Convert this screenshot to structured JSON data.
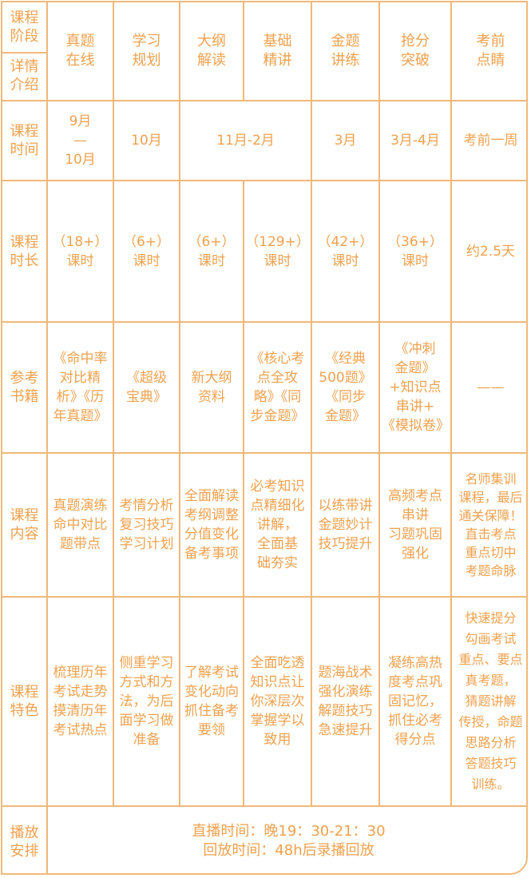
{
  "corner": {
    "top": "课程\n阶段",
    "bottom": "详情\n介绍"
  },
  "stages": [
    "真题\n在线",
    "学习\n规划",
    "大纲\n解读",
    "基础\n精讲",
    "金题\n讲练",
    "抢分\n突破",
    "考前\n点睛"
  ],
  "row_labels": {
    "time": "课程\n时间",
    "duration": "课程\n时长",
    "books": "参考\n书籍",
    "content": "课程\n内容",
    "features": "课程\n特色",
    "schedule": "播放\n安排"
  },
  "time": [
    "9月\n—\n10月",
    "10月",
    "11月-2月",
    "3月",
    "3月-4月",
    "考前一周"
  ],
  "duration": [
    "（18+）\n课时",
    "（6+）\n课时",
    "（6+）\n课时",
    "（129+）\n课时",
    "（42+）\n课时",
    "（36+）\n课时",
    "约2.5天"
  ],
  "books": [
    "《命中率\n对比精\n析》《历\n年真题》",
    "《超级\n宝典》",
    "新大纲\n资料",
    "《核心考\n点全攻\n略》《同\n步金题》",
    "《经典\n500题》\n《同步\n金题》",
    "《冲刺\n金题》\n+知识点\n串讲+\n《模拟卷》",
    "——"
  ],
  "content": [
    "真题演练\n命中对比\n题带点",
    "考情分析\n复习技巧\n学习计划",
    "全面解读\n考纲调整\n分值变化\n备考事项",
    "必考知识\n点精细化\n讲解，\n全面基\n础夯实",
    "以练带讲\n金题妙计\n技巧提升",
    "高频考点\n串讲\n习题巩固\n强化",
    "名师集训\n课程，最后\n通关保障！\n直击考点\n重点切中\n考题命脉"
  ],
  "features": [
    "梳理历年\n考试走势\n摸清历年\n考试热点",
    "侧重学习\n方式和方\n法，为后\n面学习做\n准备",
    "了解考试\n变化动向\n抓住备考\n要领",
    "全面吃透\n知识点让\n你深层次\n掌握学以\n致用",
    "题海战术\n强化演练\n解题技巧\n急速提升",
    "凝练高热\n度考点巩\n固记忆，\n抓住必考\n得分点",
    "快速提分\n勾画考试\n重点、要点\n真考题，\n猜题讲解\n传授，命题\n思路分析\n答题技巧\n训练。"
  ],
  "schedule": {
    "live": "直播时间：晚19：30-21：30",
    "replay": "回放时间：48h后录播回放"
  }
}
